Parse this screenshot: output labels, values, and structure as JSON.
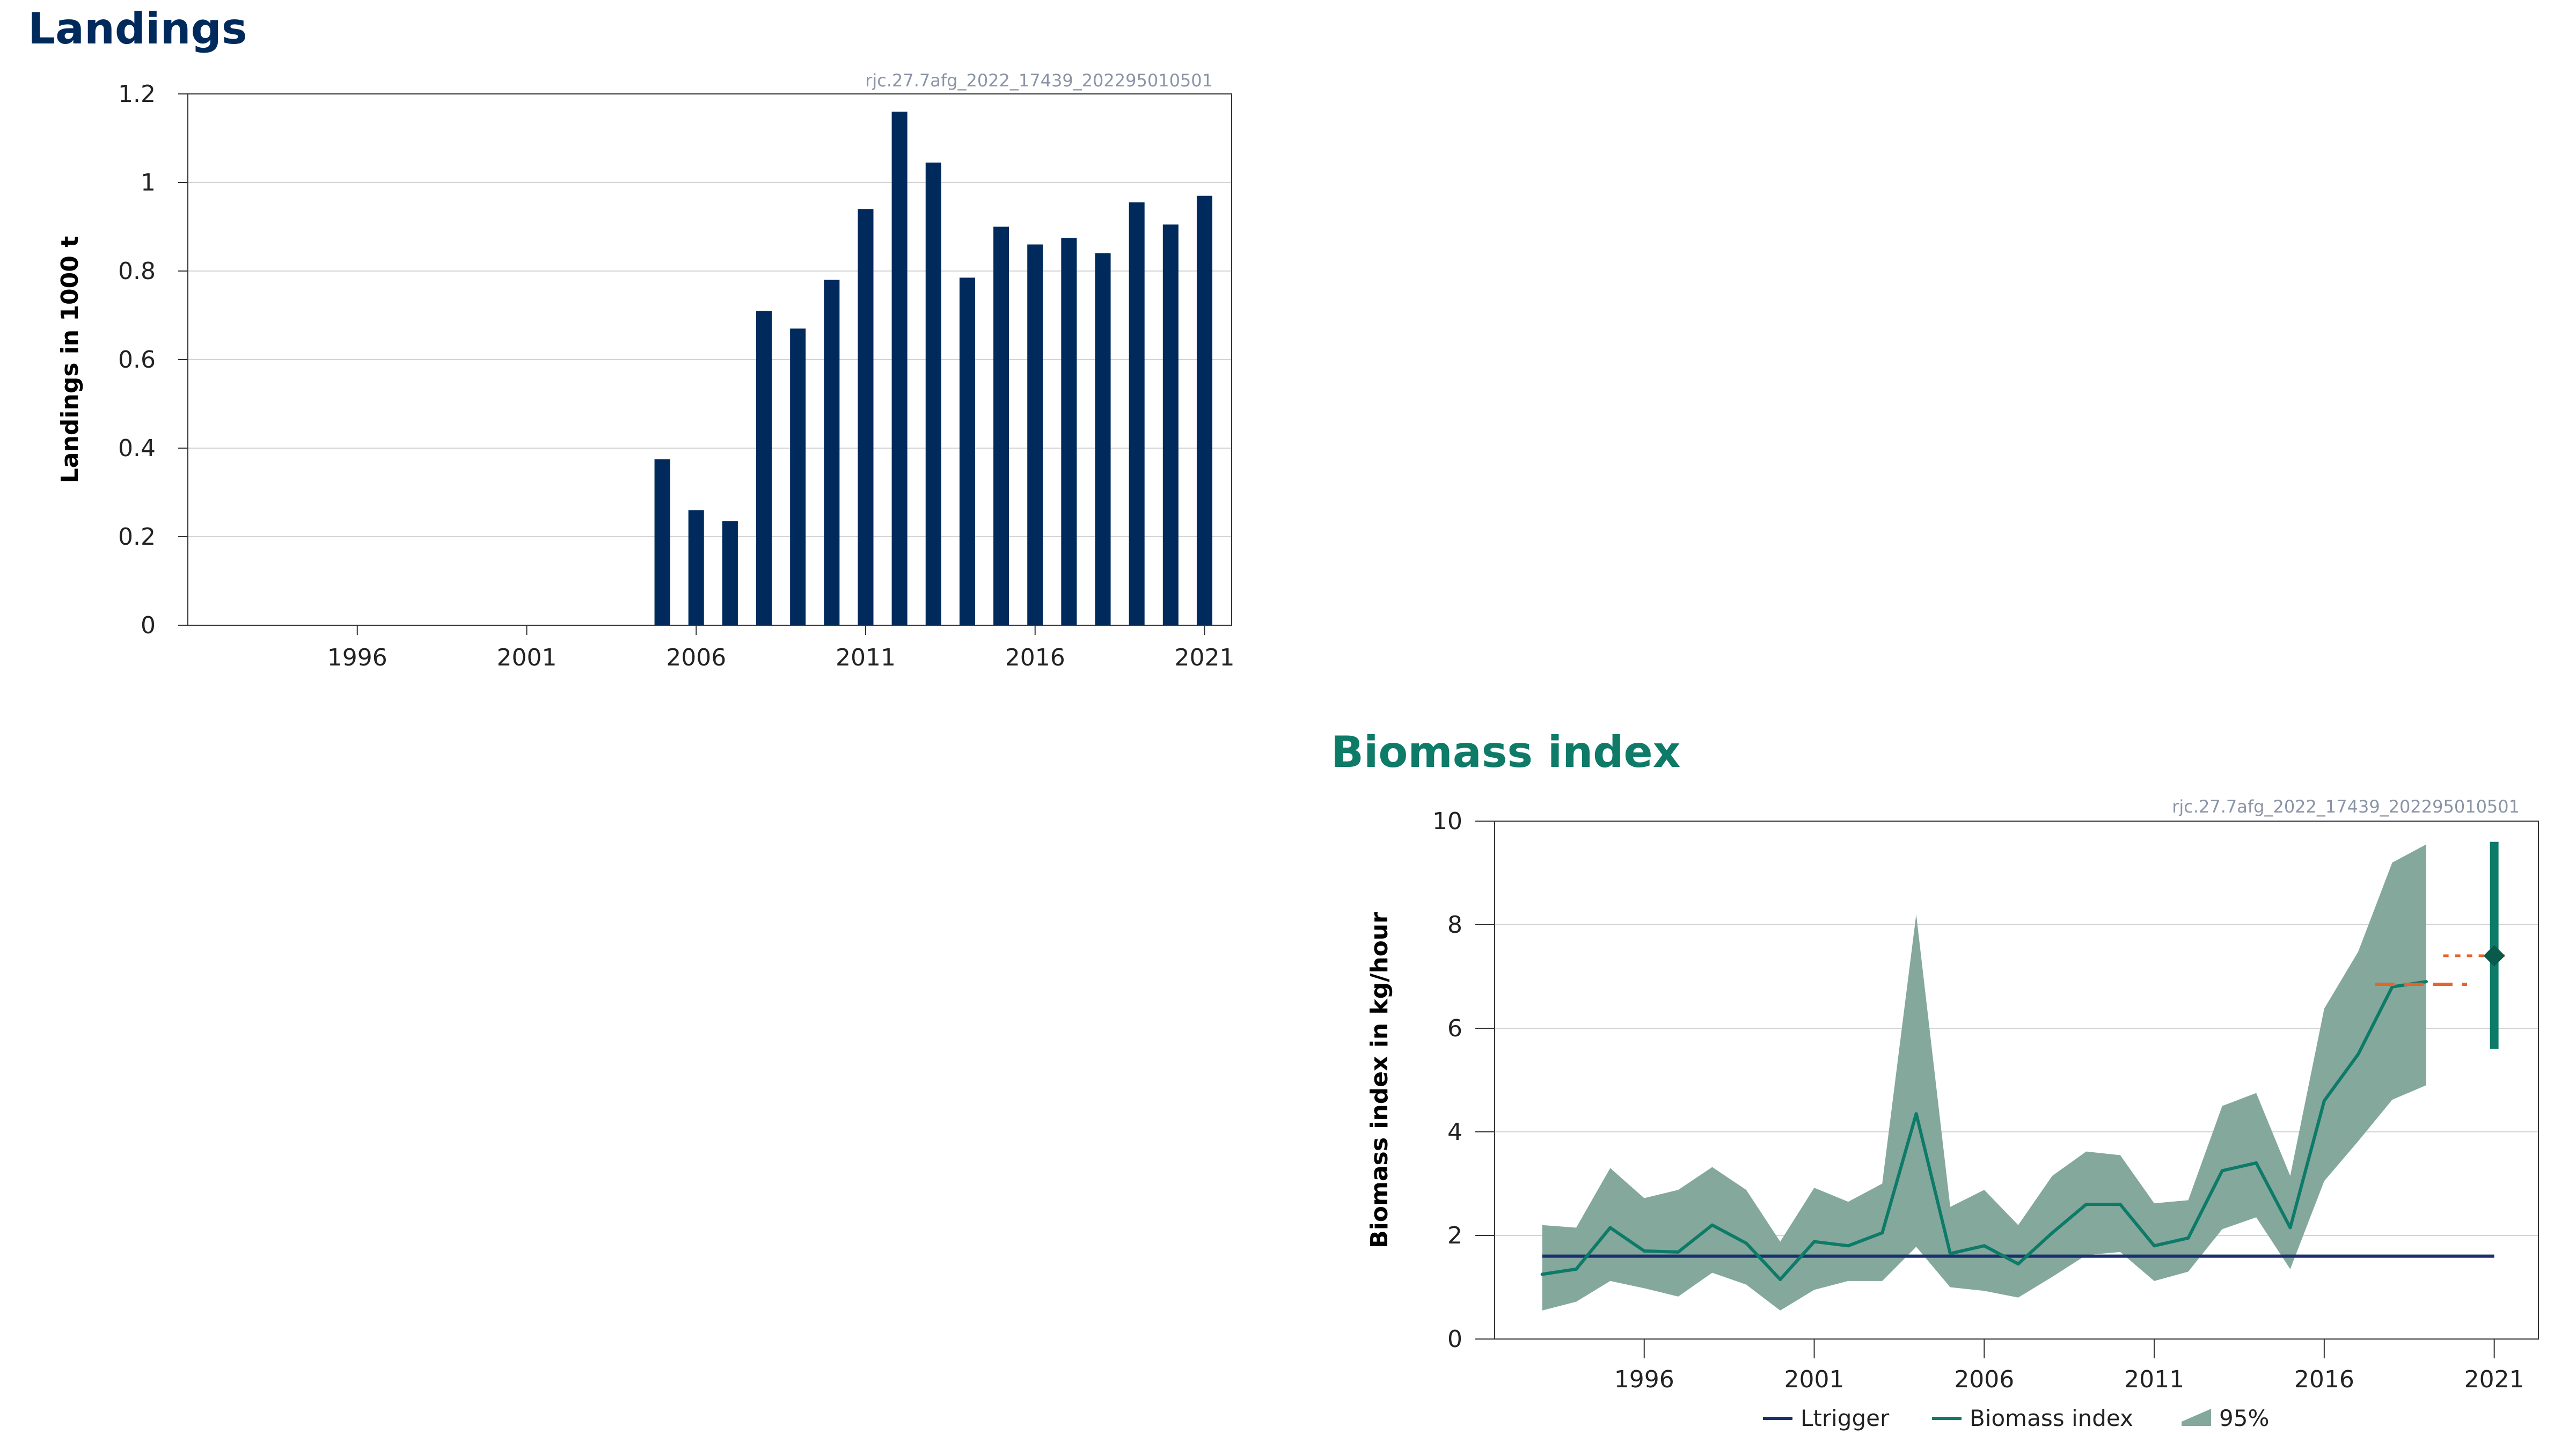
{
  "colors": {
    "landings_bar": "#002a5c",
    "landings_title": "#002a5c",
    "biomass_title": "#0e7a68",
    "biomass_line": "#0e7a68",
    "ci_band": "#84a89c",
    "ltrigger": "#1a2f6e",
    "advice_marker": "#e8632c",
    "gridline": "#d4d4d4",
    "source_text": "#8a94a6"
  },
  "chart_data": [
    {
      "id": "landings",
      "type": "bar",
      "title": "Landings",
      "source": "rjc.27.7afg_2022_17439_202295010501",
      "xlabel": "",
      "ylabel": "Landings in 1000 t",
      "xlim": [
        1991,
        2021.8
      ],
      "ylim": [
        0,
        1.2
      ],
      "grid": true,
      "x_ticks": [
        1996,
        2001,
        2006,
        2011,
        2016,
        2021
      ],
      "y_ticks": [
        0,
        0.2,
        0.4,
        0.6,
        0.8,
        1,
        1.2
      ],
      "categories": [
        2005,
        2006,
        2007,
        2008,
        2009,
        2010,
        2011,
        2012,
        2013,
        2014,
        2015,
        2016,
        2017,
        2018,
        2019,
        2020,
        2021
      ],
      "values": [
        0.375,
        0.26,
        0.235,
        0.71,
        0.67,
        0.78,
        0.94,
        1.16,
        1.045,
        0.785,
        0.9,
        0.86,
        0.875,
        0.84,
        0.955,
        0.905,
        0.97
      ]
    },
    {
      "id": "biomass",
      "type": "line",
      "title": "Biomass index",
      "source": "rjc.27.7afg_2022_17439_202295010501",
      "xlabel": "",
      "ylabel": "Biomass index in kg/hour",
      "xlim": [
        1991.6,
        2022.3
      ],
      "ylim": [
        0,
        10
      ],
      "grid": true,
      "x_ticks": [
        1996,
        2001,
        2006,
        2011,
        2016,
        2021
      ],
      "y_ticks": [
        0,
        2,
        4,
        6,
        8,
        10
      ],
      "x": [
        1993,
        1994,
        1995,
        1996,
        1997,
        1998,
        1999,
        2000,
        2001,
        2002,
        2003,
        2004,
        2005,
        2006,
        2007,
        2008,
        2009,
        2010,
        2011,
        2012,
        2013,
        2014,
        2015,
        2016,
        2017,
        2018,
        2019
      ],
      "series": [
        {
          "name": "Biomass index",
          "kind": "line",
          "values": [
            1.25,
            1.35,
            2.15,
            1.7,
            1.68,
            2.2,
            1.85,
            1.15,
            1.88,
            1.8,
            2.05,
            4.35,
            1.65,
            1.8,
            1.45,
            2.05,
            2.6,
            2.6,
            1.8,
            1.95,
            3.25,
            3.4,
            2.15,
            4.6,
            5.5,
            6.8,
            6.9
          ]
        },
        {
          "name": "95%",
          "kind": "band",
          "lower": [
            0.55,
            0.72,
            1.12,
            0.98,
            0.82,
            1.28,
            1.05,
            0.55,
            0.95,
            1.12,
            1.12,
            1.78,
            1.0,
            0.93,
            0.8,
            1.2,
            1.62,
            1.68,
            1.12,
            1.3,
            2.12,
            2.35,
            1.35,
            3.05,
            3.82,
            4.62,
            4.9
          ],
          "upper": [
            2.2,
            2.15,
            3.3,
            2.72,
            2.88,
            3.32,
            2.88,
            1.88,
            2.92,
            2.65,
            3.0,
            8.2,
            2.55,
            2.88,
            2.2,
            3.15,
            3.62,
            3.55,
            2.62,
            2.68,
            4.5,
            4.75,
            3.15,
            6.38,
            7.48,
            9.2,
            9.55
          ]
        },
        {
          "name": "Ltrigger",
          "kind": "hline",
          "x": [
            1993,
            2021
          ],
          "y": 1.6
        }
      ],
      "advice": {
        "mean_segment": {
          "x": [
            2017.5,
            2020.2
          ],
          "y": 6.85
        },
        "recent_segment": {
          "x": [
            2019.5,
            2021.3
          ],
          "y": 7.4
        },
        "point": {
          "x": 2021,
          "y": 7.4,
          "low": 5.6,
          "high": 9.6
        }
      },
      "legend": {
        "placement": "bottom",
        "items": [
          "Ltrigger",
          "Biomass index",
          "95%"
        ]
      }
    }
  ]
}
